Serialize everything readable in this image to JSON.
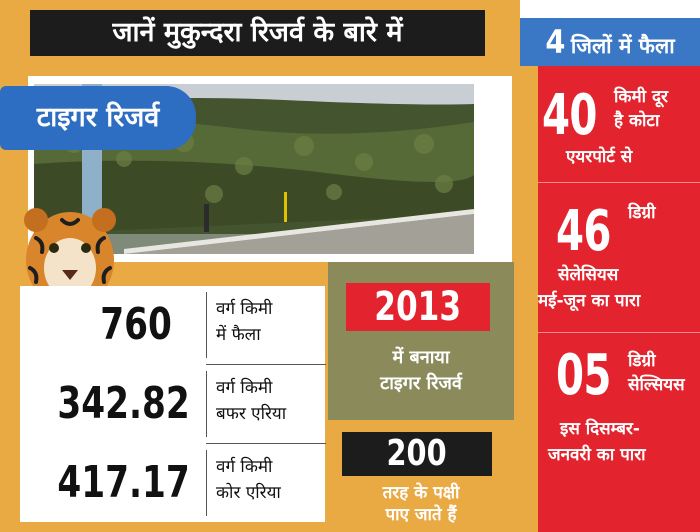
{
  "header": {
    "title": "जानें मुकुन्दरा रिजर्व के बारे में"
  },
  "districts": {
    "number": "4",
    "text": "जिलों में फैला"
  },
  "badge": {
    "label": "टाइगर रिजर्व"
  },
  "facts": [
    {
      "value": "40",
      "line1": "किमी दूर",
      "line2": "है कोटा",
      "line3": "एयरपोर्ट से"
    },
    {
      "value": "46",
      "line1": "डिग्री",
      "line2": "सेलेसियस",
      "line3": "मई-जून का पारा"
    },
    {
      "value": "05",
      "line1": "डिग्री",
      "line2": "सेल्सियस",
      "line3": "इस दिसम्बर-",
      "line4": "जनवरी का पारा"
    }
  ],
  "stats": [
    {
      "value": "760",
      "line1": "वर्ग किमी",
      "line2": "में फैला"
    },
    {
      "value": "342.82",
      "line1": "वर्ग किमी",
      "line2": "बफर एरिया"
    },
    {
      "value": "417.17",
      "line1": "वर्ग किमी",
      "line2": "कोर एरिया"
    }
  ],
  "established": {
    "year": "2013",
    "line1": "में बनाया",
    "line2": "टाइगर रिजर्व"
  },
  "birds": {
    "count": "200",
    "line1": "तरह के पक्षी",
    "line2": "पाए जाते हैं"
  },
  "colors": {
    "orange": "#e9a943",
    "red": "#e3232d",
    "blue": "#3a78c5",
    "dark": "#1c1c1c",
    "olive": "#8a8a5a"
  }
}
